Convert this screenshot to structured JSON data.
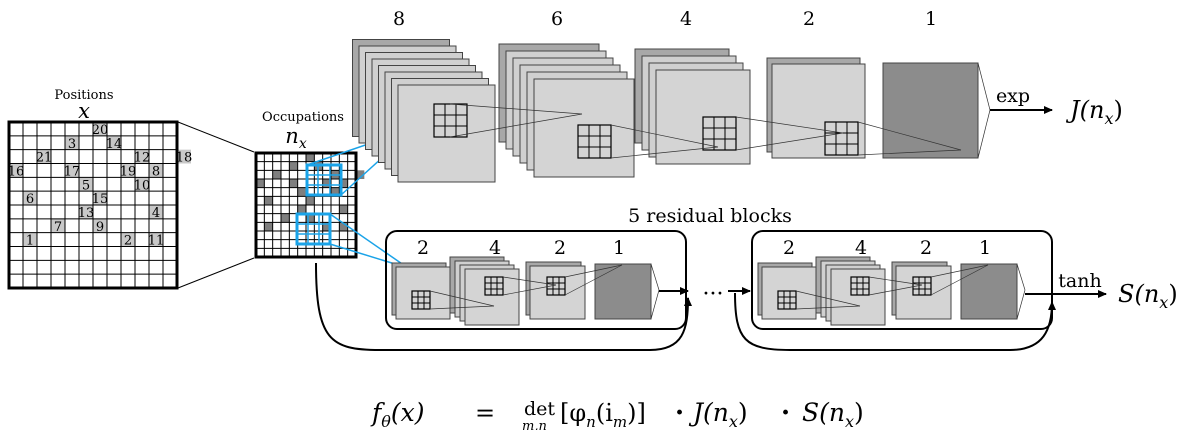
{
  "colors": {
    "accent_blue": "#1aa3e8",
    "cell_gray": "#c8c8c8",
    "dark_gray": "#8c8c8c",
    "occupied": "#7f7f7f",
    "layer_light": "#d4d4d4",
    "layer_mid": "#a8a8a8",
    "layer_dark": "#8a8a8a"
  },
  "positions": {
    "label": "Positions",
    "symbol": "x",
    "cells": [
      {
        "n": "20",
        "r": 0,
        "c": 6
      },
      {
        "n": "3",
        "r": 1,
        "c": 4
      },
      {
        "n": "14",
        "r": 1,
        "c": 7
      },
      {
        "n": "21",
        "r": 2,
        "c": 2
      },
      {
        "n": "12",
        "r": 2,
        "c": 9
      },
      {
        "n": "18",
        "r": 2,
        "c": 12
      },
      {
        "n": "16",
        "r": 3,
        "c": 0
      },
      {
        "n": "17",
        "r": 3,
        "c": 4
      },
      {
        "n": "19",
        "r": 3,
        "c": 8
      },
      {
        "n": "8",
        "r": 3,
        "c": 10
      },
      {
        "n": "5",
        "r": 4,
        "c": 5
      },
      {
        "n": "10",
        "r": 4,
        "c": 9
      },
      {
        "n": "6",
        "r": 5,
        "c": 1
      },
      {
        "n": "15",
        "r": 5,
        "c": 6
      },
      {
        "n": "13",
        "r": 6,
        "c": 5
      },
      {
        "n": "4",
        "r": 6,
        "c": 10
      },
      {
        "n": "7",
        "r": 7,
        "c": 3
      },
      {
        "n": "9",
        "r": 7,
        "c": 6
      },
      {
        "n": "1",
        "r": 8,
        "c": 1
      },
      {
        "n": "2",
        "r": 8,
        "c": 8
      },
      {
        "n": "11",
        "r": 8,
        "c": 10
      }
    ]
  },
  "occupations": {
    "label": "Occupations",
    "symbol": "n",
    "subscript": "x"
  },
  "top_row": {
    "channel_labels": [
      "8",
      "6",
      "4",
      "2",
      "1"
    ],
    "activation": "exp",
    "output_func": "J",
    "output_arg": "(n",
    "output_sub": "x",
    "output_close": ")"
  },
  "residual": {
    "title": "5 residual blocks",
    "block_channels": [
      "2",
      "4",
      "2",
      "1"
    ],
    "ellipsis": "···",
    "activation": "tanh",
    "output_func": "S",
    "output_arg": "(n",
    "output_sub": "x",
    "output_close": ")"
  },
  "formula": {
    "f": "f",
    "f_sub": "θ",
    "f_arg": "(x)",
    "eq": "=",
    "det": "det",
    "det_sub": "m,n",
    "det_arg1": "[φ",
    "det_arg_sub": "n",
    "det_arg2": "(i",
    "det_arg_sub2": "m",
    "det_arg3": ")]",
    "dot1": "·",
    "J": "J(n",
    "J_sub": "x",
    "J_close": ")",
    "dot2": "·",
    "S": "S(n",
    "S_sub": "x",
    "S_close": ")"
  }
}
